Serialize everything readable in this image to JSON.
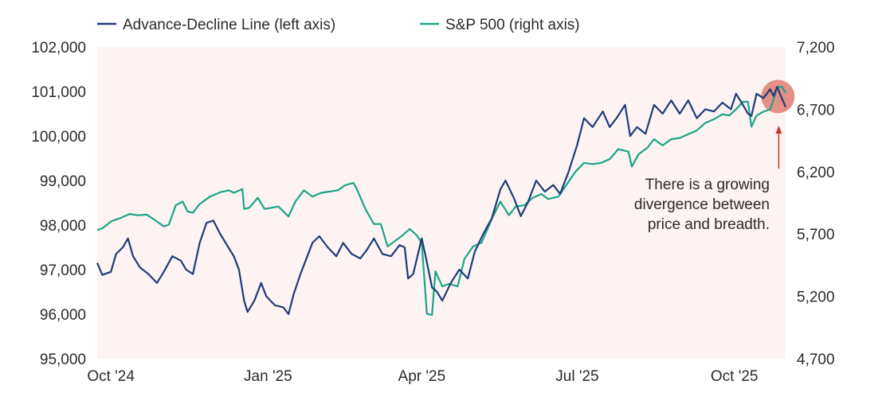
{
  "chart_data": {
    "type": "line",
    "title": "",
    "dual_axis": true,
    "colors": {
      "advance_decline": "#1e3c78",
      "sp500": "#1aa58a",
      "plot_background": "#fdf3f2",
      "highlight": "#e07c72",
      "arrow": "#c0392b"
    },
    "x_axis": {
      "type": "date",
      "range": [
        "2024-09-23",
        "2025-10-31"
      ],
      "ticks": [
        {
          "date": "2024-10-01",
          "label": "Oct '24"
        },
        {
          "date": "2025-01-01",
          "label": "Jan '25"
        },
        {
          "date": "2025-04-01",
          "label": "Apr '25"
        },
        {
          "date": "2025-07-01",
          "label": "Jul '25"
        },
        {
          "date": "2025-10-01",
          "label": "Oct '25"
        }
      ]
    },
    "left_axis": {
      "ylim": [
        95000,
        102000
      ],
      "ticks": [
        {
          "value": 95000,
          "label": "95,000"
        },
        {
          "value": 96000,
          "label": "96,000"
        },
        {
          "value": 97000,
          "label": "97,000"
        },
        {
          "value": 98000,
          "label": "98,000"
        },
        {
          "value": 99000,
          "label": "99,000"
        },
        {
          "value": 100000,
          "label": "100,000"
        },
        {
          "value": 101000,
          "label": "101,000"
        },
        {
          "value": 102000,
          "label": "102,000"
        }
      ]
    },
    "right_axis": {
      "ylim": [
        4700,
        7200
      ],
      "ticks": [
        {
          "value": 4700,
          "label": "4,700"
        },
        {
          "value": 5200,
          "label": "5,200"
        },
        {
          "value": 5700,
          "label": "5,700"
        },
        {
          "value": 6200,
          "label": "6,200"
        },
        {
          "value": 6700,
          "label": "6,700"
        },
        {
          "value": 7200,
          "label": "7,200"
        }
      ]
    },
    "legend_position": "top-left",
    "series": [
      {
        "name": "Advance-Decline Line (left axis)",
        "axis": "left",
        "points": [
          [
            "2024-09-23",
            97150
          ],
          [
            "2024-09-26",
            96880
          ],
          [
            "2024-10-01",
            96950
          ],
          [
            "2024-10-04",
            97350
          ],
          [
            "2024-10-08",
            97500
          ],
          [
            "2024-10-11",
            97700
          ],
          [
            "2024-10-14",
            97300
          ],
          [
            "2024-10-18",
            97050
          ],
          [
            "2024-10-23",
            96900
          ],
          [
            "2024-10-28",
            96700
          ],
          [
            "2024-11-01",
            96950
          ],
          [
            "2024-11-06",
            97300
          ],
          [
            "2024-11-11",
            97200
          ],
          [
            "2024-11-14",
            97000
          ],
          [
            "2024-11-18",
            96900
          ],
          [
            "2024-11-22",
            97600
          ],
          [
            "2024-11-26",
            98050
          ],
          [
            "2024-11-30",
            98100
          ],
          [
            "2024-12-04",
            97800
          ],
          [
            "2024-12-08",
            97550
          ],
          [
            "2024-12-12",
            97300
          ],
          [
            "2024-12-15",
            97000
          ],
          [
            "2024-12-18",
            96300
          ],
          [
            "2024-12-20",
            96050
          ],
          [
            "2024-12-24",
            96300
          ],
          [
            "2024-12-28",
            96700
          ],
          [
            "2024-12-31",
            96400
          ],
          [
            "2025-01-05",
            96200
          ],
          [
            "2025-01-10",
            96150
          ],
          [
            "2025-01-13",
            96000
          ],
          [
            "2025-01-16",
            96450
          ],
          [
            "2025-01-20",
            96900
          ],
          [
            "2025-01-24",
            97300
          ],
          [
            "2025-01-27",
            97600
          ],
          [
            "2025-01-31",
            97750
          ],
          [
            "2025-02-05",
            97500
          ],
          [
            "2025-02-10",
            97300
          ],
          [
            "2025-02-14",
            97600
          ],
          [
            "2025-02-19",
            97350
          ],
          [
            "2025-02-24",
            97250
          ],
          [
            "2025-02-28",
            97450
          ],
          [
            "2025-03-04",
            97700
          ],
          [
            "2025-03-09",
            97350
          ],
          [
            "2025-03-14",
            97300
          ],
          [
            "2025-03-19",
            97550
          ],
          [
            "2025-03-22",
            97500
          ],
          [
            "2025-03-24",
            96800
          ],
          [
            "2025-03-27",
            96900
          ],
          [
            "2025-04-01",
            97700
          ],
          [
            "2025-04-03",
            97350
          ],
          [
            "2025-04-07",
            96600
          ],
          [
            "2025-04-10",
            96500
          ],
          [
            "2025-04-13",
            96300
          ],
          [
            "2025-04-18",
            96700
          ],
          [
            "2025-04-23",
            97000
          ],
          [
            "2025-04-28",
            96800
          ],
          [
            "2025-05-02",
            97400
          ],
          [
            "2025-05-07",
            97800
          ],
          [
            "2025-05-12",
            98150
          ],
          [
            "2025-05-17",
            98800
          ],
          [
            "2025-05-20",
            99000
          ],
          [
            "2025-05-25",
            98600
          ],
          [
            "2025-05-29",
            98200
          ],
          [
            "2025-06-02",
            98500
          ],
          [
            "2025-06-07",
            99000
          ],
          [
            "2025-06-12",
            98750
          ],
          [
            "2025-06-17",
            98900
          ],
          [
            "2025-06-21",
            98700
          ],
          [
            "2025-06-26",
            99200
          ],
          [
            "2025-07-01",
            99800
          ],
          [
            "2025-07-05",
            100400
          ],
          [
            "2025-07-10",
            100200
          ],
          [
            "2025-07-16",
            100550
          ],
          [
            "2025-07-20",
            100200
          ],
          [
            "2025-07-24",
            100400
          ],
          [
            "2025-07-29",
            100700
          ],
          [
            "2025-08-01",
            100000
          ],
          [
            "2025-08-05",
            100200
          ],
          [
            "2025-08-10",
            100050
          ],
          [
            "2025-08-15",
            100700
          ],
          [
            "2025-08-20",
            100500
          ],
          [
            "2025-08-25",
            100800
          ],
          [
            "2025-08-30",
            100500
          ],
          [
            "2025-09-04",
            100800
          ],
          [
            "2025-09-09",
            100400
          ],
          [
            "2025-09-14",
            100600
          ],
          [
            "2025-09-19",
            100550
          ],
          [
            "2025-09-24",
            100750
          ],
          [
            "2025-09-29",
            100600
          ],
          [
            "2025-10-02",
            100950
          ],
          [
            "2025-10-06",
            100700
          ],
          [
            "2025-10-09",
            100500
          ],
          [
            "2025-10-11",
            100450
          ],
          [
            "2025-10-14",
            100950
          ],
          [
            "2025-10-18",
            100850
          ],
          [
            "2025-10-22",
            101050
          ],
          [
            "2025-10-24",
            100900
          ],
          [
            "2025-10-26",
            101100
          ],
          [
            "2025-10-31",
            100650
          ]
        ]
      },
      {
        "name": "S&P 500 (right axis)",
        "axis": "right",
        "points": [
          [
            "2024-09-23",
            5730
          ],
          [
            "2024-09-26",
            5745
          ],
          [
            "2024-10-01",
            5800
          ],
          [
            "2024-10-07",
            5830
          ],
          [
            "2024-10-12",
            5860
          ],
          [
            "2024-10-17",
            5850
          ],
          [
            "2024-10-22",
            5855
          ],
          [
            "2024-10-27",
            5810
          ],
          [
            "2024-11-01",
            5760
          ],
          [
            "2024-11-04",
            5775
          ],
          [
            "2024-11-08",
            5930
          ],
          [
            "2024-11-12",
            5960
          ],
          [
            "2024-11-15",
            5880
          ],
          [
            "2024-11-18",
            5870
          ],
          [
            "2024-11-22",
            5940
          ],
          [
            "2024-11-28",
            6000
          ],
          [
            "2024-12-04",
            6035
          ],
          [
            "2024-12-09",
            6050
          ],
          [
            "2024-12-12",
            6030
          ],
          [
            "2024-12-17",
            6060
          ],
          [
            "2024-12-18",
            5900
          ],
          [
            "2024-12-21",
            5910
          ],
          [
            "2024-12-26",
            5990
          ],
          [
            "2024-12-30",
            5900
          ],
          [
            "2025-01-07",
            5920
          ],
          [
            "2025-01-13",
            5840
          ],
          [
            "2025-01-17",
            5960
          ],
          [
            "2025-01-22",
            6050
          ],
          [
            "2025-01-27",
            6000
          ],
          [
            "2025-02-01",
            6030
          ],
          [
            "2025-02-06",
            6040
          ],
          [
            "2025-02-11",
            6050
          ],
          [
            "2025-02-15",
            6090
          ],
          [
            "2025-02-20",
            6110
          ],
          [
            "2025-02-22",
            6060
          ],
          [
            "2025-02-27",
            5900
          ],
          [
            "2025-03-04",
            5780
          ],
          [
            "2025-03-08",
            5780
          ],
          [
            "2025-03-12",
            5600
          ],
          [
            "2025-03-16",
            5640
          ],
          [
            "2025-03-20",
            5680
          ],
          [
            "2025-03-25",
            5740
          ],
          [
            "2025-03-29",
            5690
          ],
          [
            "2025-04-01",
            5630
          ],
          [
            "2025-04-04",
            5060
          ],
          [
            "2025-04-07",
            5050
          ],
          [
            "2025-04-09",
            5400
          ],
          [
            "2025-04-13",
            5280
          ],
          [
            "2025-04-17",
            5300
          ],
          [
            "2025-04-22",
            5280
          ],
          [
            "2025-04-26",
            5500
          ],
          [
            "2025-05-01",
            5600
          ],
          [
            "2025-05-06",
            5630
          ],
          [
            "2025-05-12",
            5820
          ],
          [
            "2025-05-17",
            5960
          ],
          [
            "2025-05-22",
            5850
          ],
          [
            "2025-05-26",
            5920
          ],
          [
            "2025-05-31",
            5930
          ],
          [
            "2025-06-05",
            5990
          ],
          [
            "2025-06-10",
            6020
          ],
          [
            "2025-06-14",
            5980
          ],
          [
            "2025-06-20",
            6000
          ],
          [
            "2025-06-25",
            6100
          ],
          [
            "2025-06-30",
            6200
          ],
          [
            "2025-07-05",
            6270
          ],
          [
            "2025-07-10",
            6260
          ],
          [
            "2025-07-15",
            6270
          ],
          [
            "2025-07-20",
            6300
          ],
          [
            "2025-07-25",
            6380
          ],
          [
            "2025-07-31",
            6360
          ],
          [
            "2025-08-02",
            6240
          ],
          [
            "2025-08-06",
            6340
          ],
          [
            "2025-08-11",
            6390
          ],
          [
            "2025-08-15",
            6460
          ],
          [
            "2025-08-20",
            6410
          ],
          [
            "2025-08-25",
            6460
          ],
          [
            "2025-08-30",
            6470
          ],
          [
            "2025-09-04",
            6500
          ],
          [
            "2025-09-09",
            6530
          ],
          [
            "2025-09-14",
            6590
          ],
          [
            "2025-09-19",
            6620
          ],
          [
            "2025-09-24",
            6660
          ],
          [
            "2025-09-28",
            6650
          ],
          [
            "2025-10-02",
            6700
          ],
          [
            "2025-10-06",
            6760
          ],
          [
            "2025-10-09",
            6760
          ],
          [
            "2025-10-11",
            6560
          ],
          [
            "2025-10-14",
            6650
          ],
          [
            "2025-10-18",
            6680
          ],
          [
            "2025-10-22",
            6700
          ],
          [
            "2025-10-24",
            6780
          ],
          [
            "2025-10-26",
            6880
          ],
          [
            "2025-10-29",
            6880
          ],
          [
            "2025-10-31",
            6830
          ]
        ]
      }
    ],
    "annotation": {
      "lines": [
        "There is a growing",
        "divergence between",
        "price and breadth."
      ],
      "anchor_date": "2025-10-27"
    }
  }
}
